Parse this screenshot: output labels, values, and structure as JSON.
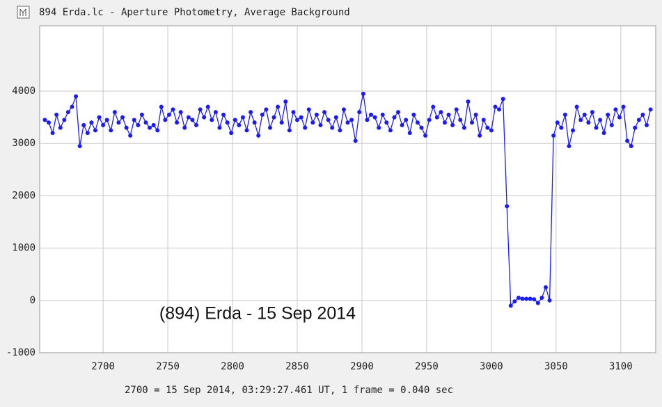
{
  "window_title": "894 Erda.lc - Aperture Photometry, Average Background",
  "chart_data": {
    "type": "line",
    "annotation": "(894) Erda - 15 Sep 2014",
    "x_label": "2700 = 15 Sep 2014, 03:29:27.461 UT, 1 frame = 0.040 sec",
    "xlim": [
      2651,
      3127
    ],
    "ylim": [
      -1000,
      5250
    ],
    "xticks": [
      2700,
      2750,
      2800,
      2850,
      2900,
      2950,
      3000,
      3050,
      3100
    ],
    "yticks": [
      -1000,
      0,
      1000,
      2000,
      3000,
      4000
    ],
    "grid": true,
    "x": [
      2655,
      2658,
      2661,
      2664,
      2667,
      2670,
      2673,
      2676,
      2679,
      2682,
      2685,
      2688,
      2691,
      2694,
      2697,
      2700,
      2703,
      2706,
      2709,
      2712,
      2715,
      2718,
      2721,
      2724,
      2727,
      2730,
      2733,
      2736,
      2739,
      2742,
      2745,
      2748,
      2751,
      2754,
      2757,
      2760,
      2763,
      2766,
      2769,
      2772,
      2775,
      2778,
      2781,
      2784,
      2787,
      2790,
      2793,
      2796,
      2799,
      2802,
      2805,
      2808,
      2811,
      2814,
      2817,
      2820,
      2823,
      2826,
      2829,
      2832,
      2835,
      2838,
      2841,
      2844,
      2847,
      2850,
      2853,
      2856,
      2859,
      2862,
      2865,
      2868,
      2871,
      2874,
      2877,
      2880,
      2883,
      2886,
      2889,
      2892,
      2895,
      2898,
      2901,
      2904,
      2907,
      2910,
      2913,
      2916,
      2919,
      2922,
      2925,
      2928,
      2931,
      2934,
      2937,
      2940,
      2943,
      2946,
      2949,
      2952,
      2955,
      2958,
      2961,
      2964,
      2967,
      2970,
      2973,
      2976,
      2979,
      2982,
      2985,
      2988,
      2991,
      2994,
      2997,
      3000,
      3003,
      3006,
      3009,
      3012,
      3015,
      3018,
      3021,
      3024,
      3027,
      3030,
      3033,
      3036,
      3039,
      3042,
      3045,
      3048,
      3051,
      3054,
      3057,
      3060,
      3063,
      3066,
      3069,
      3072,
      3075,
      3078,
      3081,
      3084,
      3087,
      3090,
      3093,
      3096,
      3099,
      3102,
      3105,
      3108,
      3111,
      3114,
      3117,
      3120,
      3123
    ],
    "series": [
      {
        "color": "#1a1aff",
        "values": [
          3450,
          3400,
          3200,
          3550,
          3300,
          3450,
          3600,
          3700,
          3900,
          2950,
          3350,
          3200,
          3400,
          3250,
          3500,
          3350,
          3450,
          3250,
          3600,
          3400,
          3500,
          3300,
          3150,
          3450,
          3350,
          3550,
          3400,
          3300,
          3350,
          3250,
          3700,
          3450,
          3550,
          3650,
          3400,
          3600,
          3300,
          3500,
          3450,
          3350,
          3650,
          3500,
          3700,
          3450,
          3600,
          3300,
          3550,
          3400,
          3200,
          3450,
          3350,
          3500,
          3250,
          3600,
          3400,
          3150,
          3550,
          3650,
          3300,
          3500,
          3700,
          3400,
          3800,
          3250,
          3600,
          3450,
          3500,
          3300,
          3650,
          3400,
          3550,
          3350,
          3600,
          3450,
          3300,
          3500,
          3250,
          3650,
          3400,
          3450,
          3050,
          3600,
          3950,
          3450,
          3550,
          3500,
          3300,
          3550,
          3400,
          3250,
          3500,
          3600,
          3350,
          3450,
          3200,
          3550,
          3400,
          3300,
          3150,
          3450,
          3700,
          3500,
          3600,
          3400,
          3550,
          3350,
          3650,
          3450,
          3300,
          3800,
          3400,
          3550,
          3150,
          3450,
          3300,
          3250,
          3700,
          3650,
          3850,
          1800,
          -100,
          -20,
          50,
          30,
          30,
          30,
          20,
          -50,
          50,
          250,
          0,
          3150,
          3400,
          3300,
          3550,
          2950,
          3250,
          3700,
          3450,
          3550,
          3400,
          3600,
          3300,
          3450,
          3200,
          3550,
          3350,
          3650,
          3500,
          3700,
          3050,
          2950,
          3300,
          3450,
          3550,
          3350,
          3650
        ]
      }
    ]
  }
}
